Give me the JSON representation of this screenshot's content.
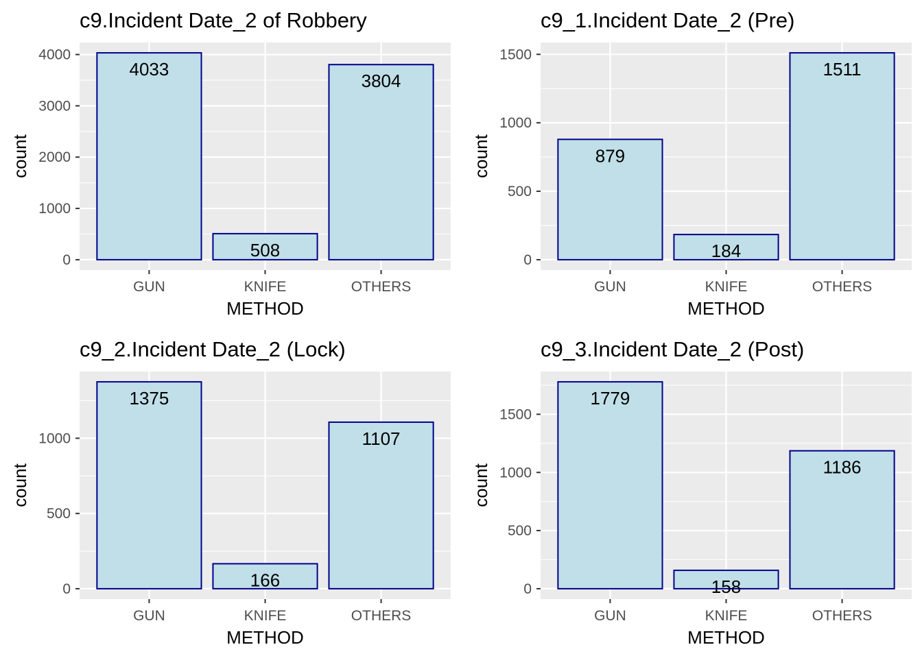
{
  "style": {
    "panel_background": "#ebebeb",
    "grid_color": "#ffffff",
    "bar_fill": "#c0dfe8",
    "bar_outline": "#00008b",
    "tick_color": "#333333"
  },
  "chart_data": [
    {
      "type": "bar",
      "title": "c9.Incident Date_2 of Robbery",
      "xlabel": "METHOD",
      "ylabel": "count",
      "categories": [
        "GUN",
        "KNIFE",
        "OTHERS"
      ],
      "values": [
        4033,
        508,
        3804
      ],
      "value_labels": [
        "4033",
        "508",
        "3804"
      ],
      "ylim": [
        0,
        4033
      ],
      "yticks": [
        0,
        1000,
        2000,
        3000,
        4000
      ],
      "grid": true
    },
    {
      "type": "bar",
      "title": "c9_1.Incident Date_2 (Pre)",
      "xlabel": "METHOD",
      "ylabel": "count",
      "categories": [
        "GUN",
        "KNIFE",
        "OTHERS"
      ],
      "values": [
        879,
        184,
        1511
      ],
      "value_labels": [
        "879",
        "184",
        "1511"
      ],
      "ylim": [
        0,
        1511
      ],
      "yticks": [
        0,
        500,
        1000,
        1500
      ],
      "grid": true
    },
    {
      "type": "bar",
      "title": "c9_2.Incident Date_2 (Lock)",
      "xlabel": "METHOD",
      "ylabel": "count",
      "categories": [
        "GUN",
        "KNIFE",
        "OTHERS"
      ],
      "values": [
        1375,
        166,
        1107
      ],
      "value_labels": [
        "1375",
        "166",
        "1107"
      ],
      "ylim": [
        0,
        1375
      ],
      "yticks": [
        0,
        500,
        1000
      ],
      "grid": true
    },
    {
      "type": "bar",
      "title": "c9_3.Incident Date_2 (Post)",
      "xlabel": "METHOD",
      "ylabel": "count",
      "categories": [
        "GUN",
        "KNIFE",
        "OTHERS"
      ],
      "values": [
        1779,
        158,
        1186
      ],
      "value_labels": [
        "1779",
        "158",
        "1186"
      ],
      "ylim": [
        0,
        1779
      ],
      "yticks": [
        0,
        500,
        1000,
        1500
      ],
      "grid": true
    }
  ]
}
